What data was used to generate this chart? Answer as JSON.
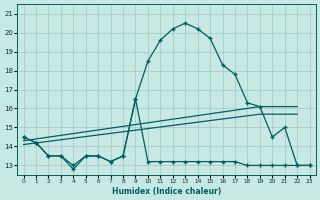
{
  "xlabel": "Humidex (Indice chaleur)",
  "xlim": [
    -0.5,
    23.5
  ],
  "ylim": [
    12.5,
    21.5
  ],
  "xticks": [
    0,
    1,
    2,
    3,
    4,
    5,
    6,
    7,
    8,
    9,
    10,
    11,
    12,
    13,
    14,
    15,
    16,
    17,
    18,
    19,
    20,
    21,
    22,
    23
  ],
  "yticks": [
    13,
    14,
    15,
    16,
    17,
    18,
    19,
    20,
    21
  ],
  "bg_color": "#c8e8e4",
  "grid_color": "#a0c8c4",
  "line_color": "#006060",
  "s1_x": [
    0,
    1,
    2,
    3,
    4,
    5,
    6,
    7,
    8,
    9,
    10,
    11,
    12,
    13,
    14,
    15,
    16,
    17,
    18,
    19,
    20,
    21,
    22,
    23
  ],
  "s1_y": [
    14.5,
    14.2,
    13.5,
    13.5,
    13.0,
    13.5,
    13.5,
    13.2,
    13.5,
    16.5,
    18.5,
    19.6,
    20.2,
    20.5,
    20.2,
    19.7,
    18.3,
    17.8,
    16.3,
    16.1,
    14.5,
    15.0,
    13.0,
    13.0
  ],
  "s2_x": [
    0,
    1,
    2,
    3,
    4,
    5,
    6,
    7,
    8,
    9,
    10,
    11,
    12,
    13,
    14,
    15,
    16,
    17,
    18,
    19,
    20,
    21,
    22,
    23
  ],
  "s2_y": [
    14.5,
    14.2,
    13.5,
    13.5,
    12.8,
    13.5,
    13.5,
    13.2,
    13.5,
    16.5,
    13.2,
    13.2,
    13.2,
    13.2,
    13.2,
    13.2,
    13.2,
    13.2,
    13.0,
    13.0,
    13.0,
    13.0,
    13.0,
    13.0
  ],
  "trend1_x": [
    0,
    19,
    22
  ],
  "trend1_y": [
    14.3,
    16.1,
    16.1
  ],
  "trend2_x": [
    0,
    19,
    22
  ],
  "trend2_y": [
    14.1,
    15.7,
    15.7
  ]
}
